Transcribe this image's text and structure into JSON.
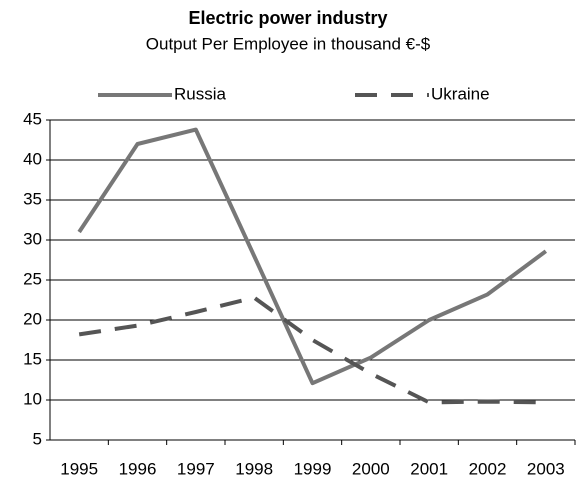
{
  "chart_data": {
    "type": "line",
    "title": "Electric power industry",
    "subtitle": "Output Per Employee in thousand €-$",
    "categories": [
      "1995",
      "1996",
      "1997",
      "1998",
      "1999",
      "2000",
      "2001",
      "2002",
      "2003"
    ],
    "series": [
      {
        "name": "Russia",
        "color": "#777777",
        "dash": false,
        "values": [
          31,
          42,
          43.8,
          28,
          12.1,
          15.3,
          20,
          23.2,
          28.6
        ]
      },
      {
        "name": "Ukraine",
        "color": "#555555",
        "dash": true,
        "values": [
          18.2,
          19.3,
          21,
          22.8,
          17.5,
          13.3,
          9.7,
          9.8,
          9.7
        ]
      }
    ],
    "ylim": [
      5,
      45
    ],
    "yticks": [
      5,
      10,
      15,
      20,
      25,
      30,
      35,
      40,
      45
    ],
    "grid": true
  }
}
